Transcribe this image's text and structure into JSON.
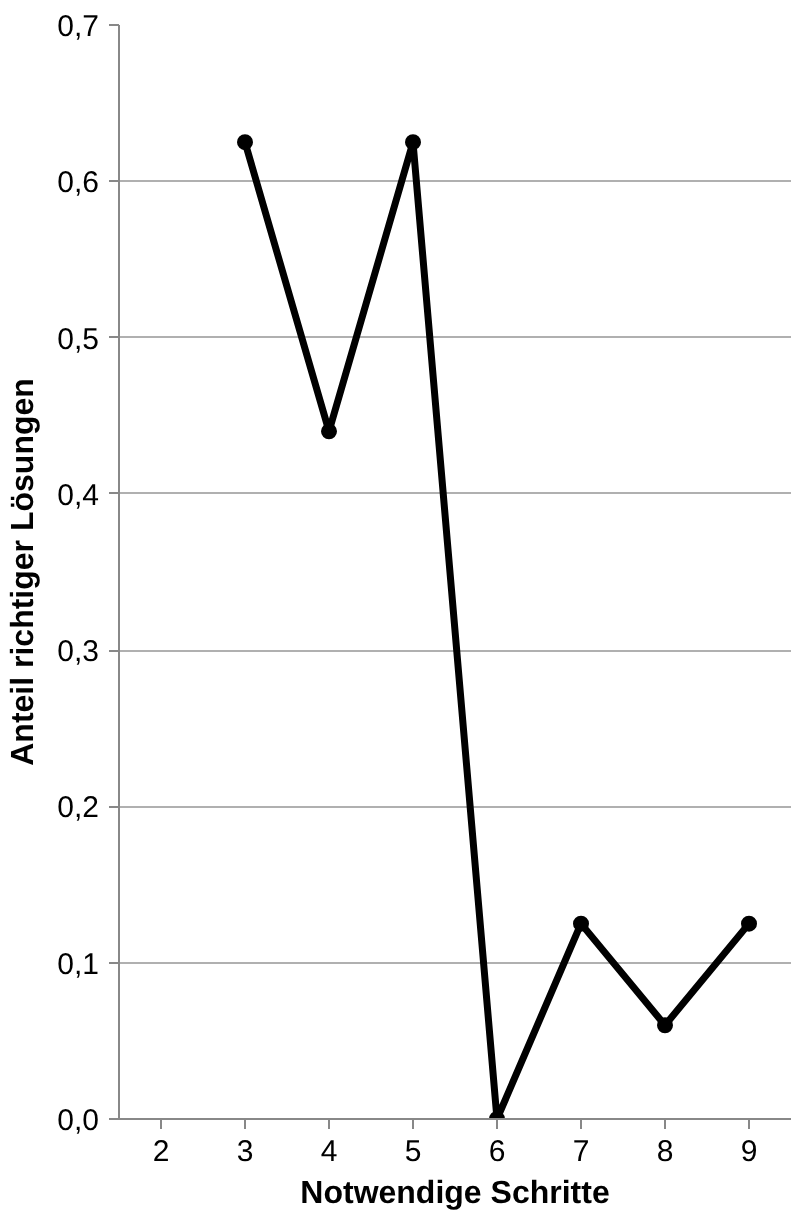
{
  "chart_data": {
    "type": "line",
    "xlabel": "Notwendige Schritte",
    "ylabel": "Anteil richtiger Lösungen",
    "x": [
      3,
      4,
      5,
      6,
      7,
      8,
      9
    ],
    "series": [
      {
        "color": "#000000",
        "values": [
          0.625,
          0.44,
          0.625,
          0,
          0.125,
          0.06,
          0.125
        ]
      }
    ],
    "xlim": [
      1.5,
      9.5
    ],
    "xticks": [
      2,
      3,
      4,
      5,
      6,
      7,
      8,
      9
    ],
    "ylim": [
      0,
      0.7
    ],
    "yticks": [
      {
        "value": 0,
        "label": "0,0"
      },
      {
        "value": 0.1,
        "label": "0,1"
      },
      {
        "value": 0.2,
        "label": "0,2"
      },
      {
        "value": 0.3,
        "label": "0,3"
      },
      {
        "value": 0.4,
        "label": "0,4"
      },
      {
        "value": 0.5,
        "label": "0,5"
      },
      {
        "value": 0.6,
        "label": "0,6"
      },
      {
        "value": 0.7,
        "label": "0,7"
      }
    ],
    "grid": "y",
    "marker": "circle",
    "line_style": "solid"
  }
}
